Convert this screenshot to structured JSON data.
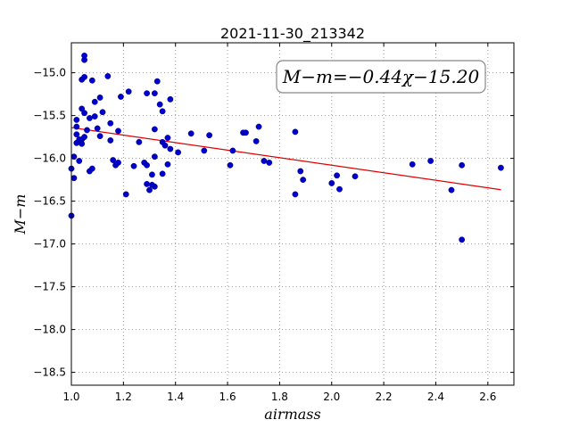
{
  "chart_data": {
    "type": "scatter",
    "title": "2021-11-30_213342",
    "xlabel": "airmass",
    "ylabel": "M−m",
    "xlim": [
      1.0,
      2.7
    ],
    "ylim": [
      -18.65,
      -14.65
    ],
    "y_inverted": true,
    "x_ticks": [
      "1.0",
      "1.2",
      "1.4",
      "1.6",
      "1.8",
      "2.0",
      "2.2",
      "2.4",
      "2.6"
    ],
    "x_tick_values": [
      1.0,
      1.2,
      1.4,
      1.6,
      1.8,
      2.0,
      2.2,
      2.4,
      2.6
    ],
    "y_ticks": [
      "−15.0",
      "−15.5",
      "−16.0",
      "−16.5",
      "−17.0",
      "−17.5",
      "−18.0",
      "−18.5"
    ],
    "y_tick_values": [
      -15.0,
      -15.5,
      -16.0,
      -16.5,
      -17.0,
      -17.5,
      -18.0,
      -18.5
    ],
    "grid": true,
    "annotation": "M−m=−0.44χ−15.20",
    "fit_line": {
      "slope": -0.44,
      "intercept": -15.2,
      "x_range": [
        1.0,
        2.65
      ],
      "color": "#e00000"
    },
    "point_color": "#0000cc",
    "points": [
      [
        1.0,
        -16.67
      ],
      [
        1.0,
        -16.12
      ],
      [
        1.01,
        -16.23
      ],
      [
        1.01,
        -15.98
      ],
      [
        1.02,
        -15.55
      ],
      [
        1.02,
        -15.63
      ],
      [
        1.02,
        -15.72
      ],
      [
        1.02,
        -15.82
      ],
      [
        1.03,
        -16.03
      ],
      [
        1.03,
        -15.78
      ],
      [
        1.04,
        -15.08
      ],
      [
        1.04,
        -15.42
      ],
      [
        1.04,
        -15.78
      ],
      [
        1.04,
        -15.83
      ],
      [
        1.05,
        -14.85
      ],
      [
        1.05,
        -14.8
      ],
      [
        1.05,
        -15.05
      ],
      [
        1.05,
        -15.47
      ],
      [
        1.05,
        -15.75
      ],
      [
        1.06,
        -15.67
      ],
      [
        1.07,
        -15.53
      ],
      [
        1.07,
        -16.15
      ],
      [
        1.08,
        -15.09
      ],
      [
        1.08,
        -16.12
      ],
      [
        1.09,
        -15.34
      ],
      [
        1.09,
        -15.51
      ],
      [
        1.1,
        -15.65
      ],
      [
        1.11,
        -15.74
      ],
      [
        1.11,
        -15.29
      ],
      [
        1.12,
        -15.46
      ],
      [
        1.14,
        -15.04
      ],
      [
        1.15,
        -15.59
      ],
      [
        1.15,
        -15.79
      ],
      [
        1.16,
        -16.02
      ],
      [
        1.17,
        -16.08
      ],
      [
        1.18,
        -15.68
      ],
      [
        1.18,
        -16.05
      ],
      [
        1.19,
        -15.28
      ],
      [
        1.21,
        -16.42
      ],
      [
        1.22,
        -15.22
      ],
      [
        1.24,
        -16.09
      ],
      [
        1.26,
        -15.81
      ],
      [
        1.28,
        -16.05
      ],
      [
        1.29,
        -15.24
      ],
      [
        1.29,
        -16.08
      ],
      [
        1.29,
        -16.3
      ],
      [
        1.3,
        -16.37
      ],
      [
        1.31,
        -16.19
      ],
      [
        1.31,
        -16.31
      ],
      [
        1.32,
        -16.33
      ],
      [
        1.32,
        -15.66
      ],
      [
        1.32,
        -15.98
      ],
      [
        1.32,
        -15.24
      ],
      [
        1.33,
        -15.1
      ],
      [
        1.34,
        -15.37
      ],
      [
        1.35,
        -15.45
      ],
      [
        1.35,
        -15.81
      ],
      [
        1.35,
        -16.18
      ],
      [
        1.36,
        -15.85
      ],
      [
        1.37,
        -15.76
      ],
      [
        1.37,
        -16.07
      ],
      [
        1.38,
        -15.31
      ],
      [
        1.38,
        -15.89
      ],
      [
        1.41,
        -15.93
      ],
      [
        1.46,
        -15.71
      ],
      [
        1.51,
        -15.91
      ],
      [
        1.53,
        -15.73
      ],
      [
        1.61,
        -16.08
      ],
      [
        1.62,
        -15.91
      ],
      [
        1.66,
        -15.7
      ],
      [
        1.67,
        -15.7
      ],
      [
        1.71,
        -15.8
      ],
      [
        1.72,
        -15.63
      ],
      [
        1.74,
        -16.03
      ],
      [
        1.76,
        -16.05
      ],
      [
        1.86,
        -16.42
      ],
      [
        1.86,
        -15.69
      ],
      [
        1.88,
        -16.15
      ],
      [
        1.89,
        -16.25
      ],
      [
        2.0,
        -16.29
      ],
      [
        2.02,
        -16.2
      ],
      [
        2.03,
        -16.36
      ],
      [
        2.09,
        -16.21
      ],
      [
        2.31,
        -16.07
      ],
      [
        2.38,
        -16.03
      ],
      [
        2.46,
        -16.37
      ],
      [
        2.5,
        -16.08
      ],
      [
        2.5,
        -16.95
      ],
      [
        2.65,
        -16.11
      ]
    ]
  }
}
